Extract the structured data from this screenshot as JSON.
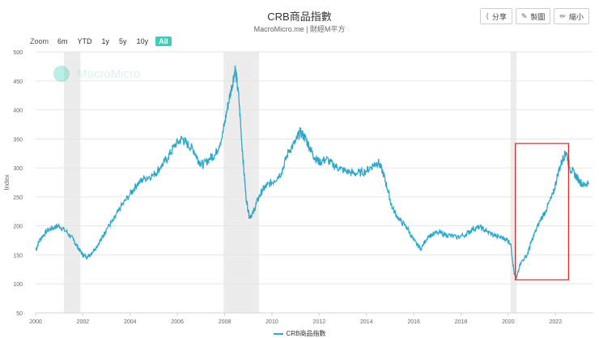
{
  "header": {
    "title": "CRB商品指數",
    "subtitle": "MacroMicro.me | 財經M平方"
  },
  "toolbar": {
    "share": {
      "label": "分享",
      "icon": "share-icon"
    },
    "image": {
      "label": "製圖",
      "icon": "pencil-icon"
    },
    "shrink": {
      "label": "縮小",
      "icon": "pencil-icon"
    }
  },
  "zoom": {
    "label": "Zoom",
    "options": [
      "6m",
      "YTD",
      "1y",
      "5y",
      "10y",
      "All"
    ],
    "selected": "All"
  },
  "watermark": "MacroMicro",
  "colors": {
    "line": "#2fa8c9",
    "recession": "#ececec",
    "highlight": "#e02020",
    "zoom_active": "#3dd0b8"
  },
  "chart_data": {
    "type": "line",
    "title": "CRB商品指數",
    "subtitle": "MacroMicro.me | 財經M平方",
    "ylabel": "Index",
    "ylim": [
      50,
      500
    ],
    "xlim": [
      2000,
      2023.6
    ],
    "y_ticks": [
      50,
      100,
      150,
      200,
      250,
      300,
      350,
      400,
      450,
      500
    ],
    "x_ticks": [
      2000,
      2002,
      2004,
      2006,
      2008,
      2010,
      2012,
      2014,
      2016,
      2018,
      2020,
      2022
    ],
    "grid": true,
    "legend_position": "bottom",
    "recession_bands": [
      [
        2001.2,
        2001.9
      ],
      [
        2007.95,
        2009.45
      ],
      [
        2020.1,
        2020.35
      ]
    ],
    "highlight_box": {
      "x": [
        2020.3,
        2022.55
      ],
      "y": [
        107,
        342
      ]
    },
    "series": [
      {
        "name": "CRB商品指數",
        "x": [
          2000.0,
          2000.2,
          2000.5,
          2000.8,
          2001.0,
          2001.3,
          2001.6,
          2001.8,
          2002.0,
          2002.2,
          2002.5,
          2002.8,
          2003.0,
          2003.3,
          2003.6,
          2004.0,
          2004.3,
          2004.6,
          2005.0,
          2005.3,
          2005.6,
          2005.9,
          2006.2,
          2006.4,
          2006.7,
          2006.9,
          2007.1,
          2007.4,
          2007.6,
          2007.9,
          2008.1,
          2008.3,
          2008.45,
          2008.6,
          2008.75,
          2008.9,
          2009.05,
          2009.2,
          2009.4,
          2009.6,
          2009.8,
          2010.1,
          2010.4,
          2010.7,
          2011.0,
          2011.2,
          2011.4,
          2011.6,
          2011.8,
          2012.0,
          2012.3,
          2012.6,
          2012.9,
          2013.3,
          2013.6,
          2014.0,
          2014.3,
          2014.5,
          2014.7,
          2014.9,
          2015.1,
          2015.4,
          2015.7,
          2016.0,
          2016.3,
          2016.6,
          2017.0,
          2017.4,
          2017.8,
          2018.2,
          2018.5,
          2018.8,
          2019.1,
          2019.5,
          2019.9,
          2020.1,
          2020.25,
          2020.35,
          2020.5,
          2020.8,
          2021.0,
          2021.3,
          2021.6,
          2021.9,
          2022.1,
          2022.3,
          2022.45,
          2022.6,
          2022.8,
          2023.0,
          2023.2,
          2023.4
        ],
        "values": [
          158,
          178,
          192,
          198,
          200,
          190,
          176,
          162,
          150,
          146,
          160,
          178,
          195,
          210,
          232,
          255,
          272,
          282,
          288,
          302,
          318,
          340,
          350,
          342,
          330,
          312,
          305,
          318,
          322,
          355,
          400,
          440,
          472,
          420,
          330,
          250,
          215,
          222,
          245,
          262,
          270,
          278,
          292,
          328,
          345,
          362,
          352,
          335,
          318,
          310,
          315,
          305,
          298,
          292,
          290,
          295,
          305,
          310,
          292,
          262,
          230,
          210,
          198,
          175,
          160,
          182,
          188,
          185,
          180,
          185,
          195,
          198,
          190,
          182,
          178,
          170,
          118,
          110,
          135,
          150,
          175,
          205,
          228,
          255,
          290,
          315,
          328,
          300,
          290,
          278,
          270,
          275
        ]
      }
    ],
    "legend": [
      "CRB商品指數"
    ]
  }
}
